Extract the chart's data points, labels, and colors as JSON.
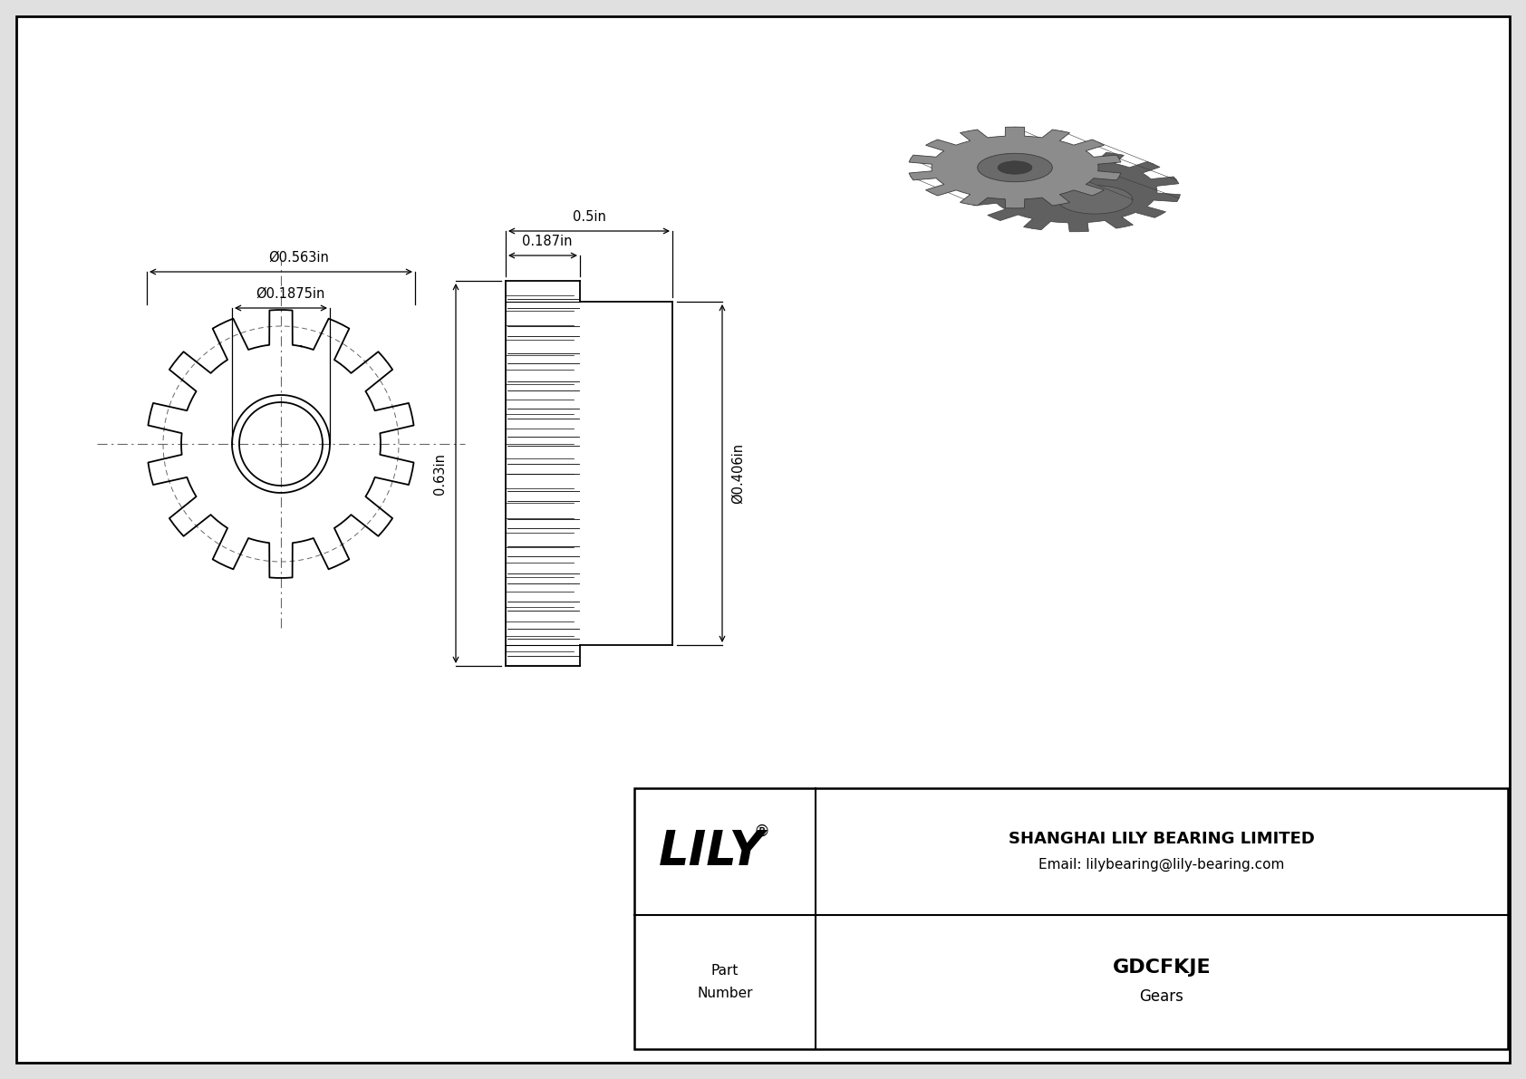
{
  "bg_color": "#e0e0e0",
  "drawing_bg": "#ffffff",
  "border_color": "#000000",
  "line_color": "#000000",
  "dash_color": "#666666",
  "title": "GDCFKJE",
  "subtitle": "Gears",
  "company": "SHANGHAI LILY BEARING LIMITED",
  "email": "Email: lilybearing@lily-bearing.com",
  "part_label": "Part\nNumber",
  "logo": "LILY",
  "logo_reg": "®",
  "dim_outer": "Ø0.563in",
  "dim_bore": "Ø0.1875in",
  "dim_length": "0.5in",
  "dim_hub_len": "0.187in",
  "dim_height": "0.63in",
  "dim_hub_dia": "Ø0.406in",
  "num_teeth": 14,
  "font_size_dim": 10.5
}
